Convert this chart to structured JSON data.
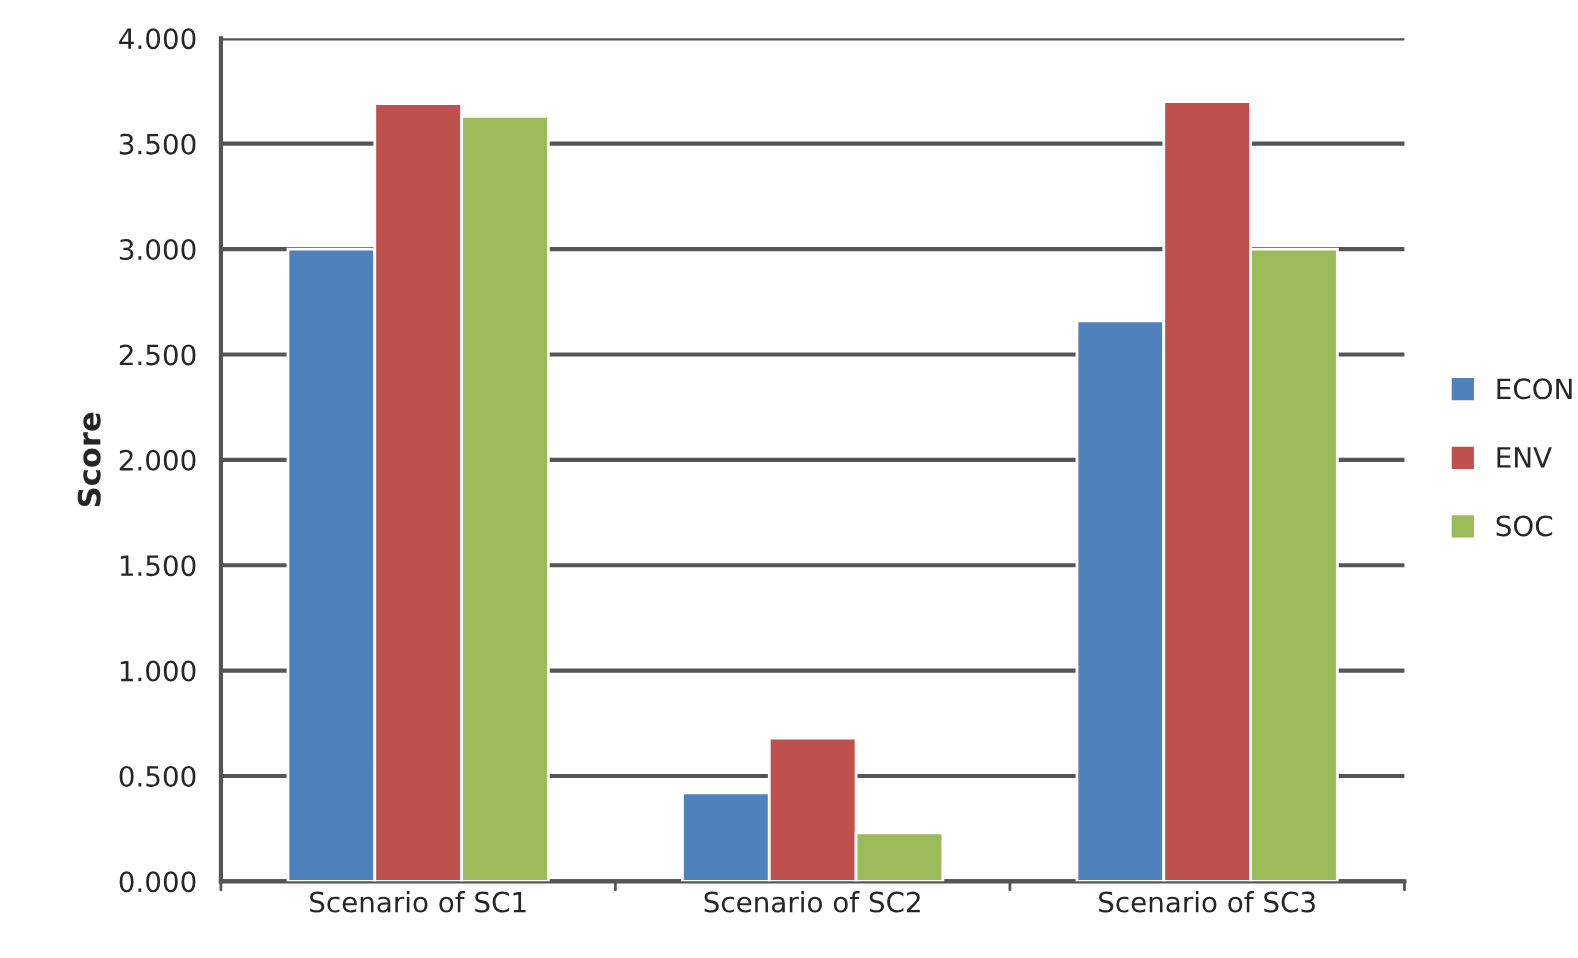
{
  "chart_data": {
    "type": "bar",
    "ylabel": "Score",
    "categories": [
      "Scenario of SC1",
      "Scenario of SC2",
      "Scenario of SC3"
    ],
    "series": [
      {
        "name": "ECON",
        "color": "#4f81bd",
        "values": [
          3.0,
          0.42,
          2.66
        ]
      },
      {
        "name": "ENV",
        "color": "#c0504d",
        "values": [
          3.69,
          0.68,
          3.7
        ]
      },
      {
        "name": "SOC",
        "color": "#9bbb59",
        "values": [
          3.63,
          0.23,
          3.0
        ]
      }
    ],
    "ylim": [
      0,
      4
    ],
    "yticks": [
      {
        "value": 0,
        "label": "0.000"
      },
      {
        "value": 0.5,
        "label": "0.500"
      },
      {
        "value": 1,
        "label": "1.000"
      },
      {
        "value": 1.5,
        "label": "1.500"
      },
      {
        "value": 2,
        "label": "2.000"
      },
      {
        "value": 2.5,
        "label": "2.500"
      },
      {
        "value": 3,
        "label": "3.000"
      },
      {
        "value": 3.5,
        "label": "3.500"
      },
      {
        "value": 4,
        "label": "4.000"
      }
    ],
    "grid": "y",
    "legend": "right"
  }
}
